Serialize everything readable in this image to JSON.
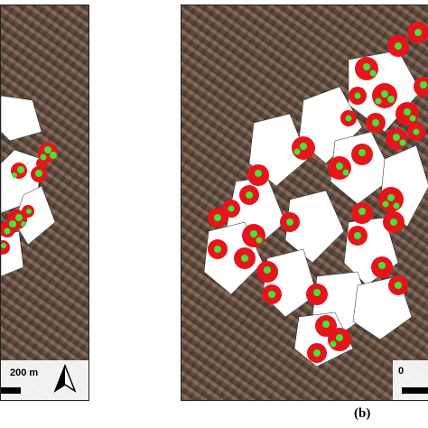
{
  "figure": {
    "panel_b_caption": "(b)"
  },
  "panel_a": {
    "scale_label": "200 m"
  },
  "panel_b": {
    "scale_label": "0"
  },
  "colors": {
    "buffer_red": "#e8141b",
    "point_green": "#3ee83a",
    "building_white": "#ffffff"
  },
  "icons": [
    "north-arrow-icon"
  ]
}
